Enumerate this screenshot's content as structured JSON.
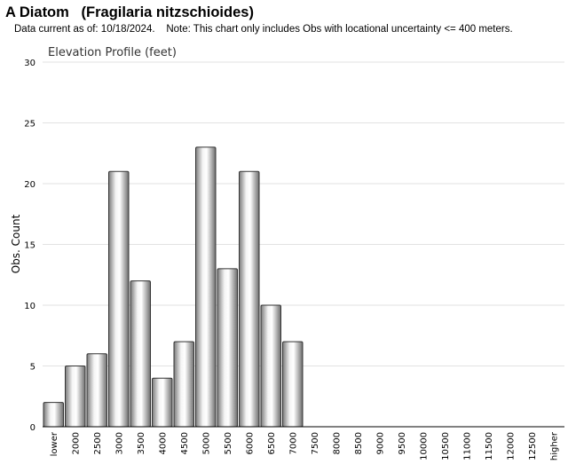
{
  "header": {
    "title": "A Diatom   (Fragilaria nitzschioides)",
    "subtitle": "Data current as of: 10/18/2024.    Note: This chart only includes Obs with locational uncertainty <= 400 meters."
  },
  "chart_data": {
    "type": "bar",
    "title": "Elevation Profile (feet)",
    "xlabel": "",
    "ylabel": "Obs. Count",
    "ylim": [
      0,
      30
    ],
    "yticks": [
      0,
      5,
      10,
      15,
      20,
      25,
      30
    ],
    "grid": true,
    "categories": [
      "lower",
      "2000",
      "2500",
      "3000",
      "3500",
      "4000",
      "4500",
      "5000",
      "5500",
      "6000",
      "6500",
      "7000",
      "7500",
      "8000",
      "8500",
      "9000",
      "9500",
      "10000",
      "10500",
      "11000",
      "11500",
      "12000",
      "12500",
      "higher"
    ],
    "values": [
      2,
      5,
      6,
      21,
      12,
      4,
      7,
      23,
      13,
      21,
      10,
      7,
      0,
      0,
      0,
      0,
      0,
      0,
      0,
      0,
      0,
      0,
      0,
      0
    ],
    "bar_color": "#b8b8b8"
  }
}
